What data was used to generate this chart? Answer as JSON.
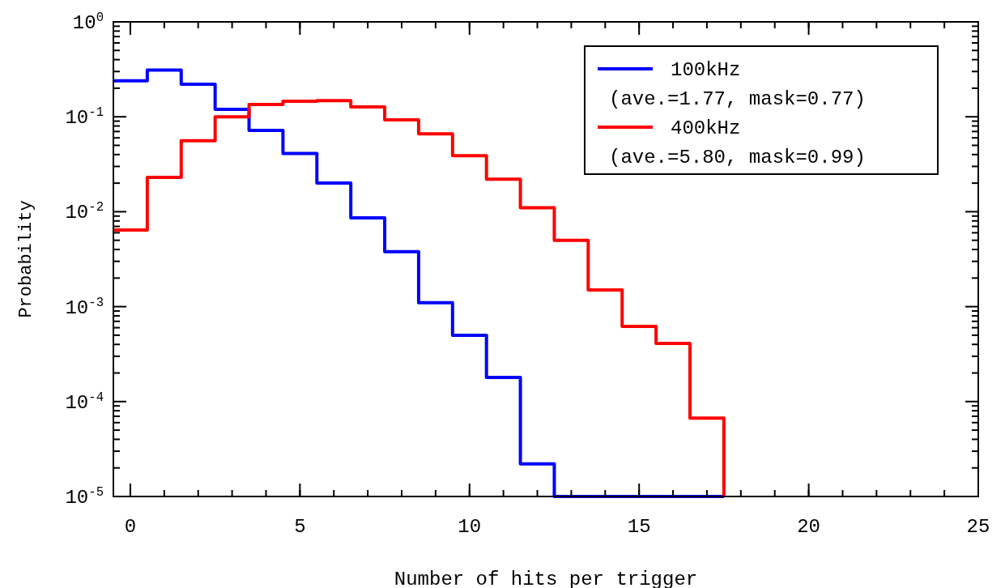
{
  "chart_data": {
    "type": "histogram",
    "xlabel": "Number of hits per trigger",
    "ylabel": "Probability",
    "bins": [
      -0.5,
      0.5,
      1.5,
      2.5,
      3.5,
      4.5,
      5.5,
      6.5,
      7.5,
      8.5,
      9.5,
      10.5,
      11.5,
      12.5,
      13.5,
      14.5,
      15.5,
      16.5,
      17.5
    ],
    "series": [
      {
        "name": "100kHz\n(ave.=1.77, mask=0.77)",
        "color": "#0000ff",
        "values": [
          0.24,
          0.31,
          0.22,
          0.12,
          0.072,
          0.041,
          0.02,
          0.0086,
          0.0038,
          0.0011,
          0.0005,
          0.00018,
          2.2e-05,
          1e-05,
          1e-05,
          1e-05,
          1e-05,
          1e-05
        ]
      },
      {
        "name": "400kHz\n(ave.=5.80, mask=0.99)",
        "color": "#ff0000",
        "values": [
          0.0064,
          0.023,
          0.056,
          0.1,
          0.135,
          0.146,
          0.148,
          0.127,
          0.093,
          0.066,
          0.039,
          0.022,
          0.011,
          0.005,
          0.0015,
          0.00062,
          0.00041,
          6.7e-05
        ]
      }
    ],
    "log": "y",
    "xlim": [
      -0.5,
      25
    ],
    "xticks": [
      0,
      5,
      10,
      15,
      20,
      25
    ],
    "ylim": [
      1e-05,
      1
    ],
    "yticks": [
      {
        "value": 1e-05,
        "label": "10$^{-5}$"
      },
      {
        "value": 0.0001,
        "label": "10$^{-4}$"
      },
      {
        "value": 0.001,
        "label": "10$^{-3}$"
      },
      {
        "value": 0.01,
        "label": "10$^{-2}$"
      },
      {
        "value": 0.1,
        "label": "10$^{-1}$"
      },
      {
        "value": 1,
        "label": "10$^{0}$"
      }
    ],
    "legend": "top right",
    "grid": false
  }
}
